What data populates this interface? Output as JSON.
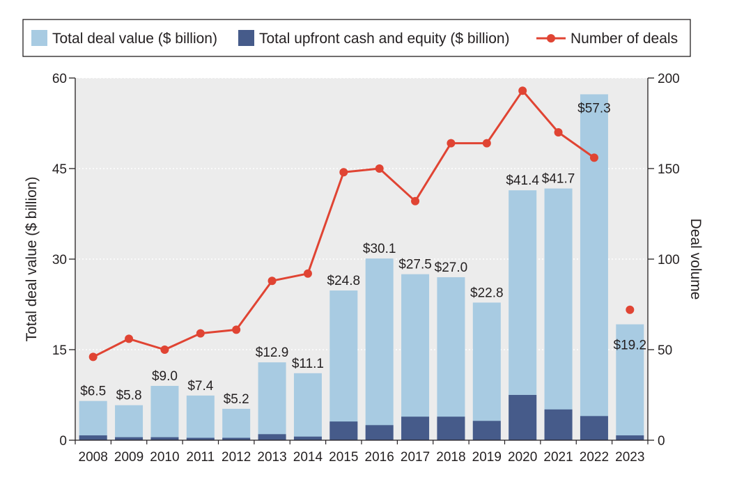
{
  "chart_data": {
    "type": "bar",
    "categories": [
      "2008",
      "2009",
      "2010",
      "2011",
      "2012",
      "2013",
      "2014",
      "2015",
      "2016",
      "2017",
      "2018",
      "2019",
      "2020",
      "2021",
      "2022",
      "2023"
    ],
    "series": [
      {
        "name": "Total deal value ($ billion)",
        "color": "#a8cbe2",
        "axis": "left",
        "values": [
          6.5,
          5.8,
          9.0,
          7.4,
          5.2,
          12.9,
          11.1,
          24.8,
          30.1,
          27.5,
          27.0,
          22.8,
          41.4,
          41.7,
          57.3,
          19.2
        ]
      },
      {
        "name": "Total upfront cash and equity ($ billion)",
        "color": "#465b8a",
        "axis": "left",
        "values": [
          0.8,
          0.5,
          0.5,
          0.4,
          0.4,
          1.0,
          0.6,
          3.1,
          2.5,
          3.9,
          3.9,
          3.2,
          7.5,
          5.1,
          4.0,
          0.8
        ]
      },
      {
        "name": "Number of deals",
        "color": "#e04433",
        "axis": "right",
        "type": "line",
        "values": [
          46,
          56,
          50,
          59,
          61,
          88,
          92,
          148,
          150,
          132,
          164,
          164,
          193,
          170,
          156,
          72
        ],
        "connected_through_index": 14
      }
    ],
    "data_labels": [
      "$6.5",
      "$5.8",
      "$9.0",
      "$7.4",
      "$5.2",
      "$12.9",
      "$11.1",
      "$24.8",
      "$30.1",
      "$27.5",
      "$27.0",
      "$22.8",
      "$41.4",
      "$41.7",
      "$57.3",
      "$19.2"
    ],
    "ylabel": "Total deal value ($ billion)",
    "y2label": "Deal volume",
    "ylim": [
      0,
      60
    ],
    "y2lim": [
      0,
      200
    ],
    "yticks": [
      0,
      15,
      30,
      45,
      60
    ],
    "y2ticks": [
      0,
      50,
      100,
      150,
      200
    ],
    "legend_position": "top",
    "plot_background": "#ececec"
  }
}
